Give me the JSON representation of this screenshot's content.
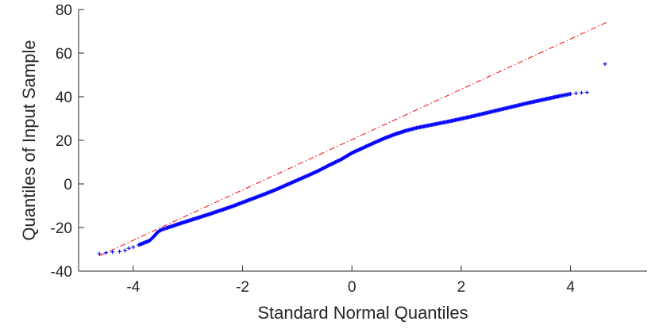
{
  "chart_data": {
    "type": "scatter",
    "title": "",
    "xlabel": "Standard Normal Quantiles",
    "ylabel": "Quantiles of Input Sample",
    "xlim": [
      -5,
      5.4
    ],
    "ylim": [
      -40,
      80
    ],
    "xticks": [
      -4,
      -2,
      0,
      2,
      4
    ],
    "yticks": [
      -40,
      -20,
      0,
      20,
      40,
      60,
      80
    ],
    "xtick_labels": [
      "-4",
      "-2",
      "0",
      "2",
      "4"
    ],
    "ytick_labels": [
      "-40",
      "-20",
      "0",
      "20",
      "40",
      "60",
      "80"
    ],
    "grid": false,
    "series": [
      {
        "marker": "+",
        "color": "#0000ff",
        "points": [
          [
            -4.62,
            -32
          ],
          [
            -4.38,
            -31.2
          ],
          [
            -4.25,
            -31
          ],
          [
            -4.15,
            -30.5
          ],
          [
            -4.08,
            -29.5
          ],
          [
            -4.0,
            -29
          ],
          [
            -3.9,
            -28
          ],
          [
            -3.8,
            -27
          ],
          [
            -3.7,
            -26
          ],
          [
            -3.62,
            -24
          ],
          [
            -3.55,
            -22
          ],
          [
            -3.48,
            -21
          ],
          [
            -3.4,
            -20.3
          ],
          [
            -3.3,
            -19.5
          ],
          [
            -3.2,
            -18.6
          ],
          [
            -3.0,
            -17
          ],
          [
            -2.8,
            -15.4
          ],
          [
            -2.6,
            -13.8
          ],
          [
            -2.4,
            -12.1
          ],
          [
            -2.2,
            -10.4
          ],
          [
            -2.0,
            -8.5
          ],
          [
            -1.8,
            -6.6
          ],
          [
            -1.6,
            -4.7
          ],
          [
            -1.4,
            -2.7
          ],
          [
            -1.2,
            -0.5
          ],
          [
            -1.0,
            1.7
          ],
          [
            -0.8,
            3.9
          ],
          [
            -0.6,
            6.2
          ],
          [
            -0.4,
            8.8
          ],
          [
            -0.2,
            11.2
          ],
          [
            0.0,
            14.2
          ],
          [
            0.2,
            16.5
          ],
          [
            0.4,
            18.8
          ],
          [
            0.6,
            21
          ],
          [
            0.8,
            22.9
          ],
          [
            1.0,
            24.5
          ],
          [
            1.2,
            25.8
          ],
          [
            1.4,
            26.8
          ],
          [
            1.6,
            27.8
          ],
          [
            1.8,
            28.8
          ],
          [
            2.0,
            29.9
          ],
          [
            2.2,
            31
          ],
          [
            2.4,
            32.2
          ],
          [
            2.6,
            33.4
          ],
          [
            2.8,
            34.6
          ],
          [
            3.0,
            35.8
          ],
          [
            3.2,
            37
          ],
          [
            3.4,
            38.1
          ],
          [
            3.6,
            39.2
          ],
          [
            3.8,
            40.3
          ],
          [
            3.9,
            40.8
          ],
          [
            4.0,
            41.3
          ],
          [
            4.1,
            41.6
          ],
          [
            4.2,
            41.8
          ],
          [
            4.3,
            42
          ],
          [
            4.63,
            55
          ]
        ]
      }
    ],
    "reference_line": {
      "style": "dash-dot",
      "color": "#ff0000",
      "x": [
        -4.62,
        4.65
      ],
      "y": [
        -33,
        74
      ]
    }
  }
}
